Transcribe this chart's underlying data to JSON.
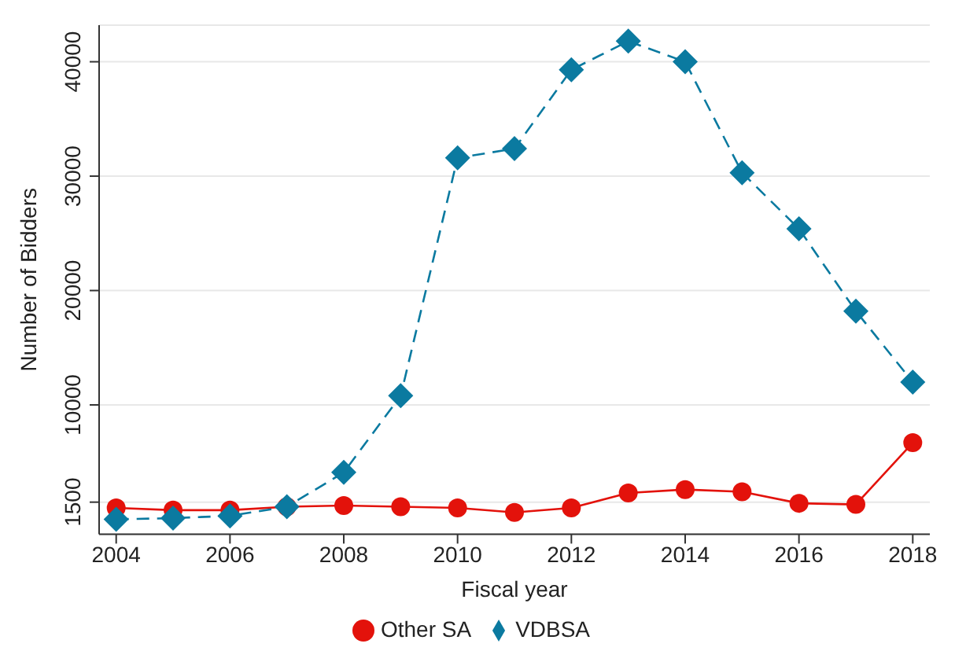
{
  "chart_data": {
    "type": "line",
    "xlabel": "Fiscal year",
    "ylabel": "Number of Bidders",
    "x": [
      2004,
      2005,
      2006,
      2007,
      2008,
      2009,
      2010,
      2011,
      2012,
      2013,
      2014,
      2015,
      2016,
      2017,
      2018
    ],
    "series": [
      {
        "name": "Other SA",
        "color": "#e3120b",
        "marker": "circle",
        "line_style": "solid",
        "values": [
          1000,
          800,
          800,
          1100,
          1200,
          1100,
          1000,
          600,
          1000,
          2300,
          2600,
          2400,
          1400,
          1300,
          6700
        ]
      },
      {
        "name": "VDBSA",
        "color": "#0b7aa0",
        "marker": "diamond",
        "line_style": "dashed",
        "values": [
          0,
          100,
          300,
          1100,
          4100,
          10800,
          31600,
          32400,
          39300,
          41800,
          40000,
          30300,
          25400,
          18200,
          12000
        ]
      }
    ],
    "xlim": [
      2003.7,
      2018.3
    ],
    "xticks": [
      2004,
      2006,
      2008,
      2010,
      2012,
      2014,
      2016,
      2018
    ],
    "ylim": [
      -1300,
      43200
    ],
    "yticks": [
      1500,
      10000,
      20000,
      30000,
      40000
    ],
    "grid": "y",
    "legend": "bottom"
  }
}
